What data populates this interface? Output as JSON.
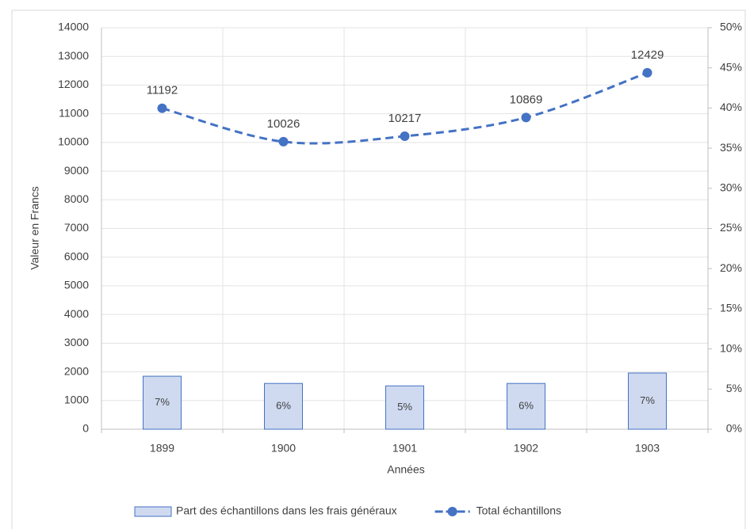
{
  "chart_data": {
    "type": "bar-line",
    "categories": [
      "1899",
      "1900",
      "1901",
      "1902",
      "1903"
    ],
    "x_label": "Années",
    "y_label": "Valeur en Francs",
    "series": [
      {
        "name": "Part des échantillons dans les frais généraux",
        "type": "bar",
        "axis": "y2",
        "color": "#cfdaf0",
        "edge_color": "#4472c4",
        "values": [
          6.6,
          5.7,
          5.4,
          5.7,
          7.0
        ],
        "value_labels": [
          "7%",
          "6%",
          "5%",
          "6%",
          "7%"
        ]
      },
      {
        "name": "Total échantillons",
        "type": "line",
        "color": "#4472c4",
        "dashed": true,
        "values": [
          11192,
          10026,
          10217,
          10869,
          12429
        ]
      }
    ],
    "ylim": [
      0,
      14000
    ],
    "yticks": [
      0,
      1000,
      2000,
      3000,
      4000,
      5000,
      6000,
      7000,
      8000,
      9000,
      10000,
      11000,
      12000,
      13000,
      14000
    ],
    "y2lim": [
      0,
      50
    ],
    "y2ticks": [
      {
        "value": 0,
        "label": "0%"
      },
      {
        "value": 5,
        "label": "5%"
      },
      {
        "value": 10,
        "label": "10%"
      },
      {
        "value": 15,
        "label": "15%"
      },
      {
        "value": 20,
        "label": "20%"
      },
      {
        "value": 25,
        "label": "25%"
      },
      {
        "value": 30,
        "label": "30%"
      },
      {
        "value": 35,
        "label": "35%"
      },
      {
        "value": 40,
        "label": "40%"
      },
      {
        "value": 45,
        "label": "45%"
      },
      {
        "value": 50,
        "label": "50%"
      }
    ],
    "grid": true,
    "legend": "bottom"
  }
}
